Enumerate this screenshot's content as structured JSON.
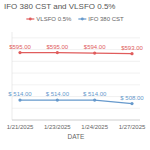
{
  "chart_data": {
    "type": "line",
    "title": "IFO 380 CST and VLSFO 0.5%",
    "x_label": "DATE",
    "categories": [
      "1/21/2025",
      "1/23/2025",
      "1/24/2025",
      "1/27/2025"
    ],
    "series": [
      {
        "name": "VLSFO 0.5%",
        "color": "#e05c5c",
        "marker": "circle",
        "values": [
          595.0,
          595.0,
          594.0,
          593.0
        ],
        "value_labels": [
          "$595.00",
          "$595.00",
          "$594.00",
          "$593.00"
        ]
      },
      {
        "name": "IFO 380 CST",
        "color": "#6699cc",
        "marker": "circle",
        "values": [
          514.0,
          514.0,
          514.0,
          508.0
        ],
        "value_labels": [
          "$ 514.00",
          "$ 514.00",
          "$ 514.00",
          "$ 508.00"
        ]
      }
    ],
    "ylim": [
      480,
      630
    ],
    "yticks": [
      480,
      500,
      520,
      540,
      560,
      580,
      600,
      620
    ],
    "grid": true,
    "legend": "top",
    "data_labels": true,
    "tick_labels": "x"
  }
}
